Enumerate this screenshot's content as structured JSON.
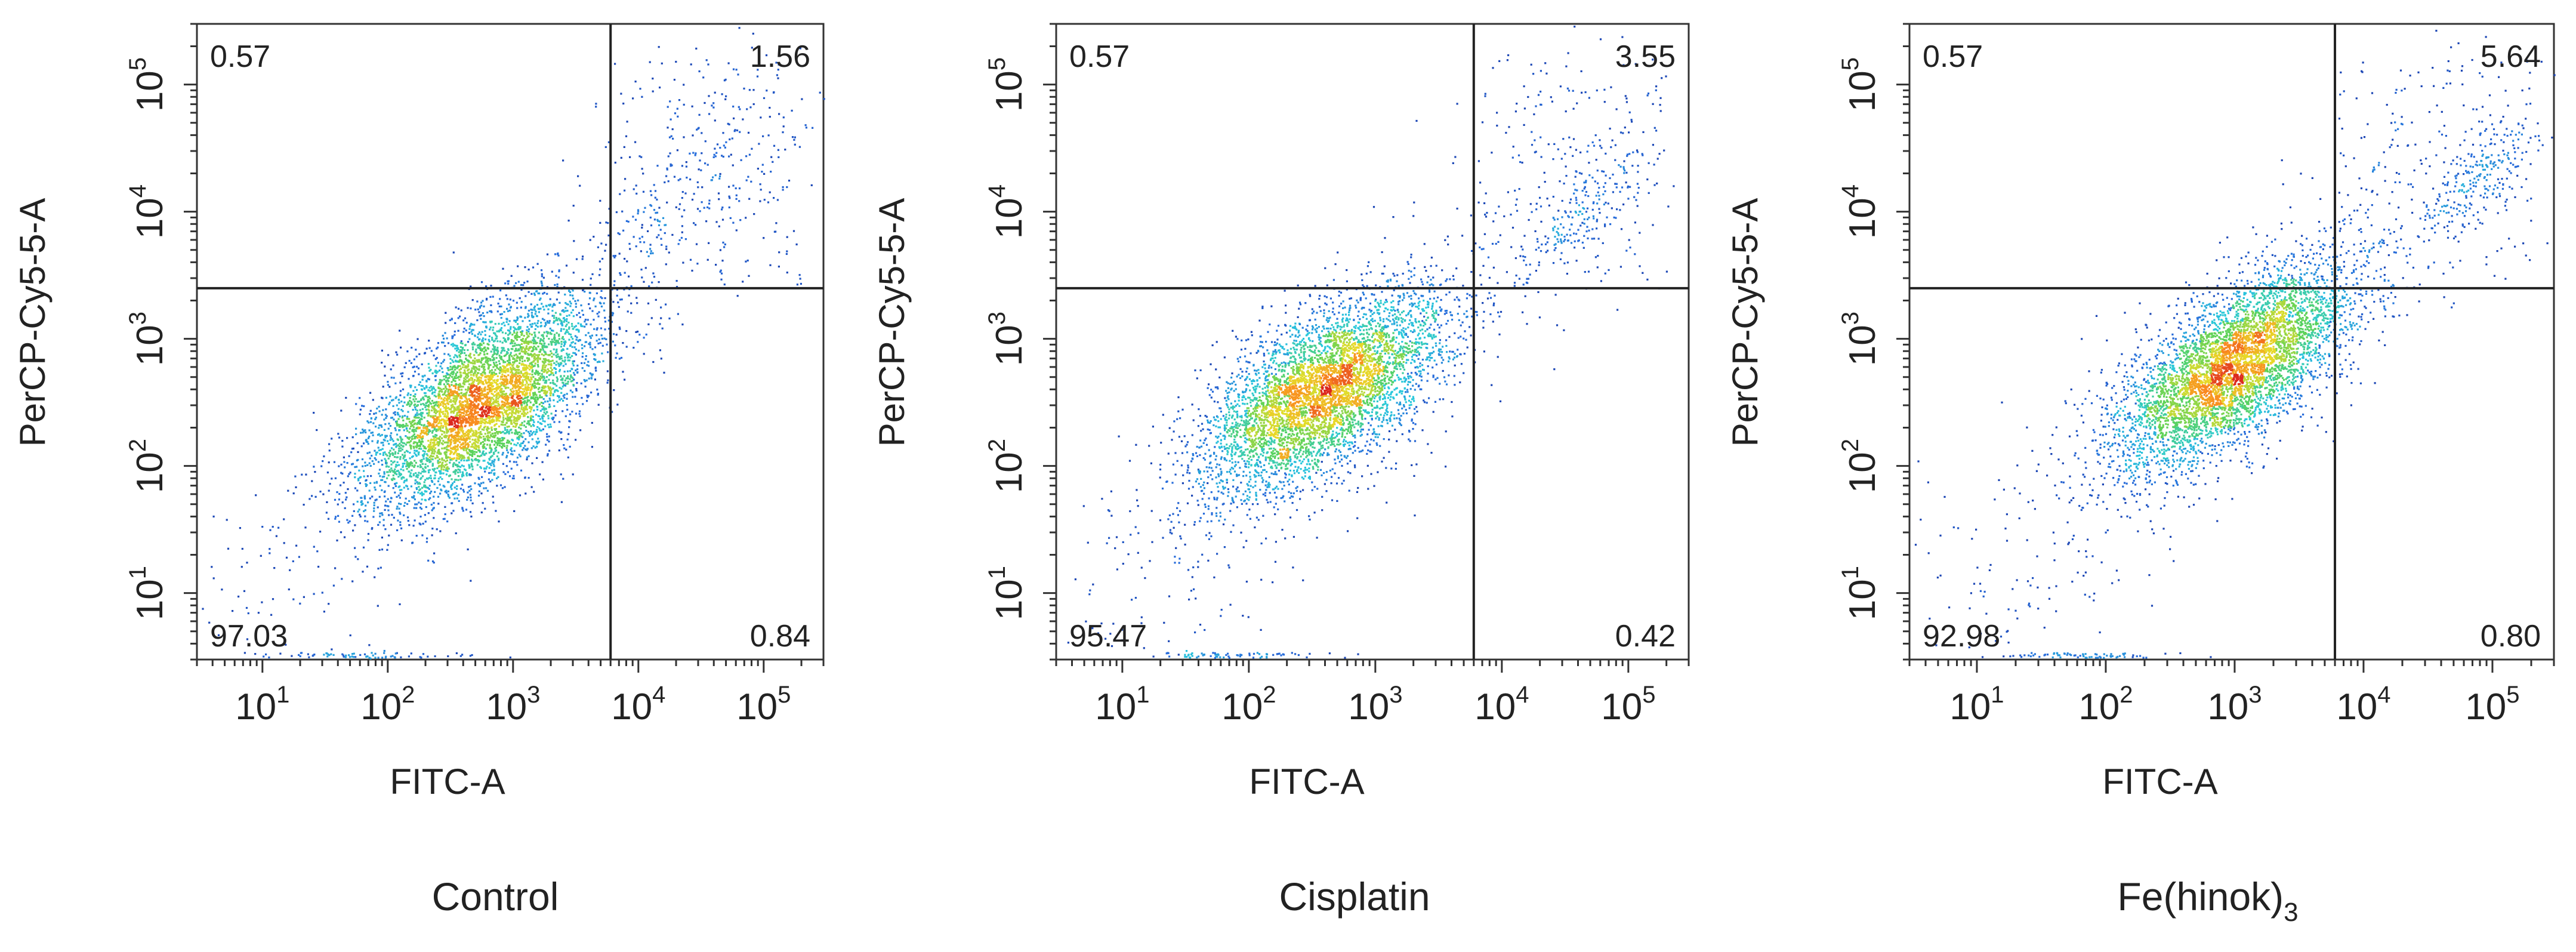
{
  "chart_data": [
    {
      "type": "scatter",
      "title": "Control",
      "xlabel": "FITC-A",
      "ylabel": "PerCP-Cy5-5-A",
      "xscale": "log",
      "yscale": "log",
      "xlim": [
        3,
        300000
      ],
      "ylim": [
        3,
        300000
      ],
      "xticks": [
        {
          "base": "10",
          "exp": "1"
        },
        {
          "base": "10",
          "exp": "2"
        },
        {
          "base": "10",
          "exp": "3"
        },
        {
          "base": "10",
          "exp": "4"
        },
        {
          "base": "10",
          "exp": "5"
        }
      ],
      "yticks": [
        {
          "base": "10",
          "exp": "1"
        },
        {
          "base": "10",
          "exp": "2"
        },
        {
          "base": "10",
          "exp": "3"
        },
        {
          "base": "10",
          "exp": "4"
        },
        {
          "base": "10",
          "exp": "5"
        }
      ],
      "gate": {
        "x": 6000,
        "y": 2500
      },
      "quadrants": {
        "upper_left": "0.57",
        "upper_right": "1.56",
        "lower_left": "97.03",
        "lower_right": "0.84"
      },
      "population": {
        "center_x": 550,
        "center_y": 320,
        "spread_major": 0.55,
        "spread_minor": 0.26,
        "angle_deg": 38,
        "count": 5200
      },
      "upper_cluster": {
        "center_x": 30000,
        "center_y": 18000,
        "spread": 0.35,
        "count": 120
      }
    },
    {
      "type": "scatter",
      "title": "Cisplatin",
      "xlabel": "FITC-A",
      "ylabel": "PerCP-Cy5-5-A",
      "xscale": "log",
      "yscale": "log",
      "xlim": [
        3,
        300000
      ],
      "ylim": [
        3,
        300000
      ],
      "xticks": [
        {
          "base": "10",
          "exp": "1"
        },
        {
          "base": "10",
          "exp": "2"
        },
        {
          "base": "10",
          "exp": "3"
        },
        {
          "base": "10",
          "exp": "4"
        },
        {
          "base": "10",
          "exp": "5"
        }
      ],
      "yticks": [
        {
          "base": "10",
          "exp": "1"
        },
        {
          "base": "10",
          "exp": "2"
        },
        {
          "base": "10",
          "exp": "3"
        },
        {
          "base": "10",
          "exp": "4"
        },
        {
          "base": "10",
          "exp": "5"
        }
      ],
      "gate": {
        "x": 6000,
        "y": 2500
      },
      "quadrants": {
        "upper_left": "0.57",
        "upper_right": "3.55",
        "lower_left": "95.47",
        "lower_right": "0.42"
      },
      "population": {
        "center_x": 380,
        "center_y": 380,
        "spread_major": 0.55,
        "spread_minor": 0.26,
        "angle_deg": 35,
        "count": 5200
      },
      "upper_cluster": {
        "center_x": 40000,
        "center_y": 9000,
        "spread": 0.18,
        "count": 160
      }
    },
    {
      "type": "scatter",
      "title": "Fe(hinok)",
      "title_subscript": "3",
      "xlabel": "FITC-A",
      "ylabel": "PerCP-Cy5-5-A",
      "xscale": "log",
      "yscale": "log",
      "xlim": [
        3,
        300000
      ],
      "ylim": [
        3,
        300000
      ],
      "xticks": [
        {
          "base": "10",
          "exp": "1"
        },
        {
          "base": "10",
          "exp": "2"
        },
        {
          "base": "10",
          "exp": "3"
        },
        {
          "base": "10",
          "exp": "4"
        },
        {
          "base": "10",
          "exp": "5"
        }
      ],
      "yticks": [
        {
          "base": "10",
          "exp": "1"
        },
        {
          "base": "10",
          "exp": "2"
        },
        {
          "base": "10",
          "exp": "3"
        },
        {
          "base": "10",
          "exp": "4"
        },
        {
          "base": "10",
          "exp": "5"
        }
      ],
      "gate": {
        "x": 6000,
        "y": 2500
      },
      "quadrants": {
        "upper_left": "0.57",
        "upper_right": "5.64",
        "lower_left": "92.98",
        "lower_right": "0.80"
      },
      "population": {
        "center_x": 950,
        "center_y": 600,
        "spread_major": 0.55,
        "spread_minor": 0.24,
        "angle_deg": 38,
        "count": 5200
      },
      "upper_cluster": {
        "center_x": 80000,
        "center_y": 20000,
        "spread": 0.2,
        "count": 220
      }
    }
  ]
}
